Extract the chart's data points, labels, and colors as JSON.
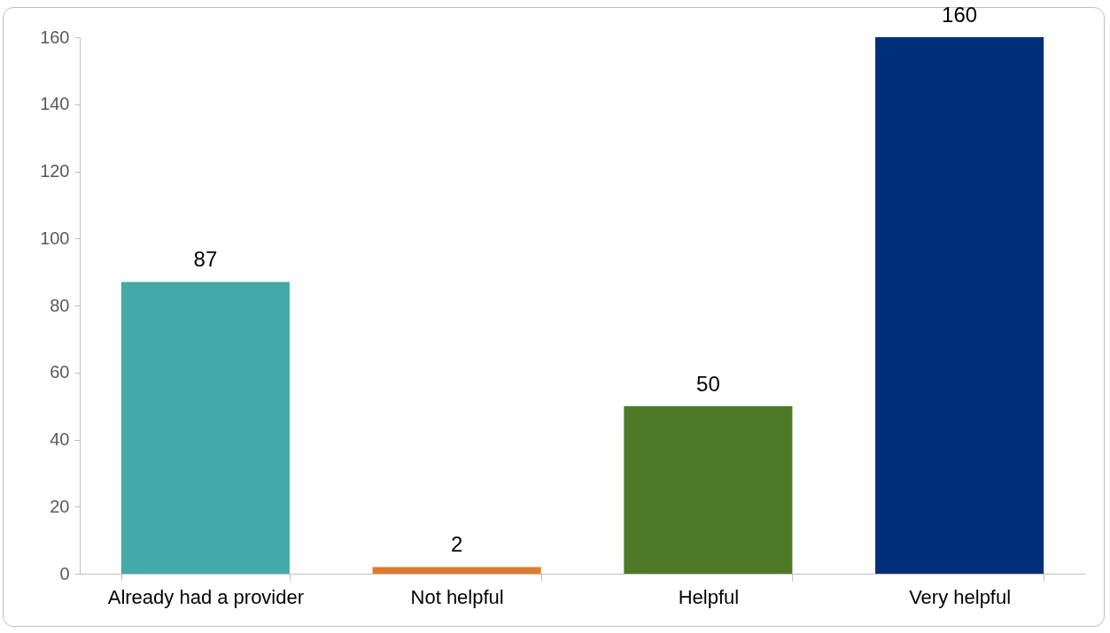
{
  "chart_data": {
    "type": "bar",
    "categories": [
      "Already had a provider",
      "Not helpful",
      "Helpful",
      "Very helpful"
    ],
    "values": [
      87,
      2,
      50,
      160
    ],
    "colors": [
      "#43aaa9",
      "#e07b2e",
      "#4e7a28",
      "#002f7a"
    ],
    "ylim": [
      0,
      160
    ],
    "yticks": [
      0,
      20,
      40,
      60,
      80,
      100,
      120,
      140,
      160
    ],
    "grid": false,
    "data_labels": true
  }
}
